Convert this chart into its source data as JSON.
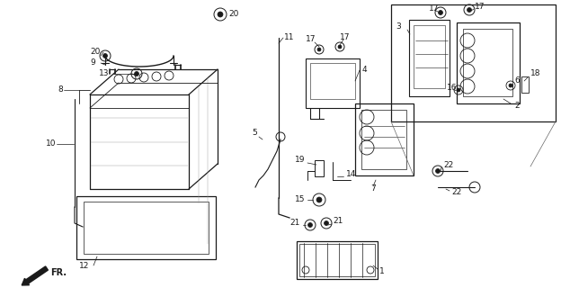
{
  "bg_color": "#ffffff",
  "line_color": "#1a1a1a",
  "fig_width": 6.24,
  "fig_height": 3.2,
  "dpi": 100
}
